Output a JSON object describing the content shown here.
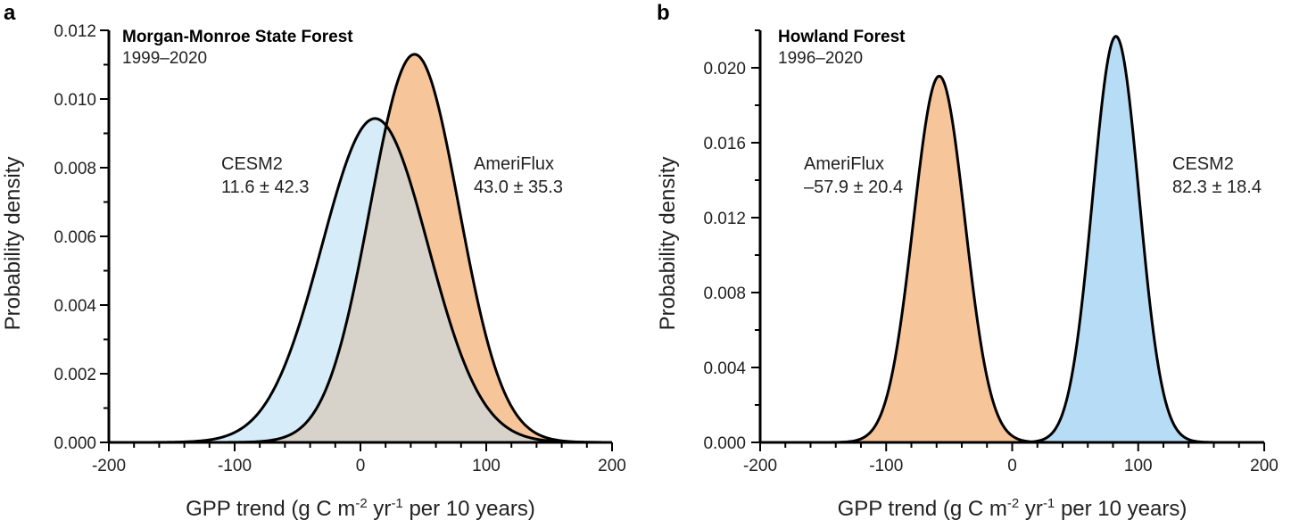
{
  "chart_data": [
    {
      "type": "area",
      "panel_label": "a",
      "site": "Morgan-Monroe State Forest",
      "years": "1999–2020",
      "xlabel_main": "GPP trend (g C m",
      "xlabel_sup1": "-2",
      "xlabel_mid": " yr",
      "xlabel_sup2": "-1",
      "xlabel_end": " per 10 years)",
      "ylabel": "Probability density",
      "xlim": [
        -200,
        200
      ],
      "ylim": [
        0,
        0.012
      ],
      "xticks": [
        "-200",
        "-100",
        "0",
        "100",
        "200"
      ],
      "yticks": [
        "0.000",
        "0.002",
        "0.004",
        "0.006",
        "0.008",
        "0.010",
        "0.012"
      ],
      "series": [
        {
          "name": "AmeriFlux",
          "mean": 43.0,
          "sd": 35.3,
          "color": "#f7c59a",
          "label_name": "AmeriFlux",
          "label_stats": "43.0 ± 35.3"
        },
        {
          "name": "CESM2",
          "mean": 11.6,
          "sd": 42.3,
          "color": "#d6ecf8",
          "label_name": "CESM2",
          "label_stats": "11.6 ± 42.3"
        }
      ],
      "overlap_color": "#d8d3ca"
    },
    {
      "type": "area",
      "panel_label": "b",
      "site": "Howland Forest",
      "years": "1996–2020",
      "xlabel_main": "GPP trend (g C m",
      "xlabel_sup1": "-2",
      "xlabel_mid": " yr",
      "xlabel_sup2": "-1",
      "xlabel_end": " per 10 years)",
      "ylabel": "Probability density",
      "xlim": [
        -200,
        200
      ],
      "ylim": [
        0,
        0.022
      ],
      "xticks": [
        "-200",
        "-100",
        "0",
        "100",
        "200"
      ],
      "yticks": [
        "0.000",
        "0.004",
        "0.008",
        "0.012",
        "0.016",
        "0.020"
      ],
      "series": [
        {
          "name": "AmeriFlux",
          "mean": -57.9,
          "sd": 20.4,
          "color": "#f7c59a",
          "label_name": "AmeriFlux",
          "label_stats": "–57.9 ± 20.4"
        },
        {
          "name": "CESM2",
          "mean": 82.3,
          "sd": 18.4,
          "color": "#b7dcf5",
          "label_name": "CESM2",
          "label_stats": "82.3 ± 18.4"
        }
      ]
    }
  ]
}
